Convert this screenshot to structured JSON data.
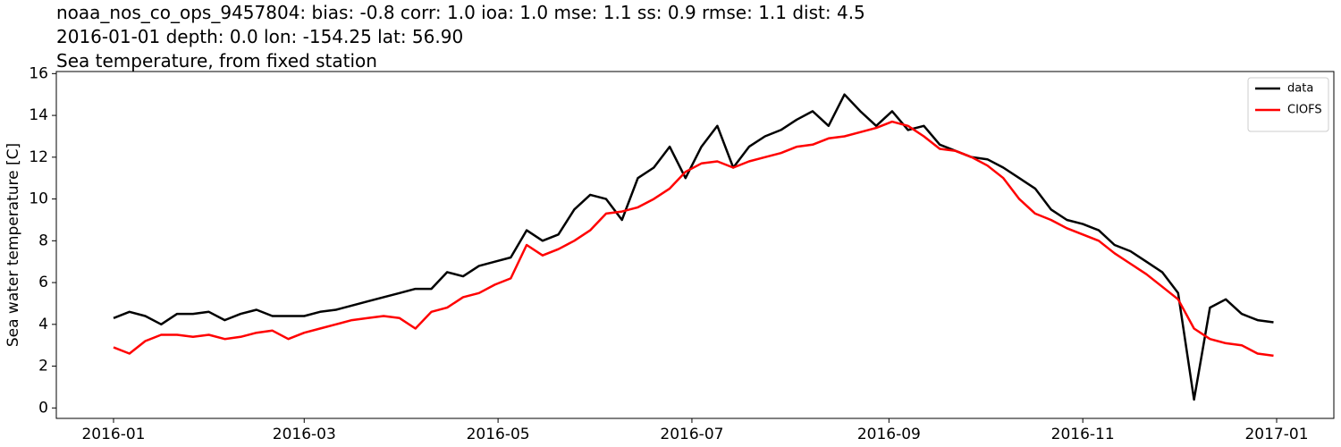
{
  "chart_data": {
    "type": "line",
    "title": "noaa_nos_co_ops_9457804: bias: -0.8  corr: 1.0  ioa: 1.0  mse: 1.1  ss: 0.9  rmse: 1.1  dist: 4.5",
    "subtitle": "2016-01-01 depth: 0.0 lon: -154.25 lat: 56.90",
    "subtitle2": "Sea temperature, from fixed station",
    "ylabel": "Sea water temperature [C]",
    "x": [
      0,
      5,
      10,
      15,
      20,
      25,
      30,
      35,
      40,
      45,
      50,
      55,
      60,
      65,
      70,
      75,
      80,
      85,
      90,
      95,
      100,
      105,
      110,
      115,
      120,
      125,
      130,
      135,
      140,
      145,
      150,
      155,
      160,
      165,
      170,
      175,
      180,
      185,
      190,
      195,
      200,
      205,
      210,
      215,
      220,
      225,
      230,
      235,
      240,
      245,
      250,
      255,
      260,
      265,
      270,
      275,
      280,
      285,
      290,
      295,
      300,
      305,
      310,
      315,
      320,
      325,
      330,
      335,
      340,
      345,
      350,
      355,
      360,
      365
    ],
    "series": [
      {
        "name": "data",
        "color": "#000000",
        "values": [
          4.3,
          4.6,
          4.4,
          4.0,
          4.5,
          4.5,
          4.6,
          4.2,
          4.5,
          4.7,
          4.4,
          4.4,
          4.4,
          4.6,
          4.7,
          4.9,
          5.1,
          5.3,
          5.5,
          5.7,
          5.7,
          6.5,
          6.3,
          6.8,
          7.0,
          7.2,
          8.5,
          8.0,
          8.3,
          9.5,
          10.2,
          10.0,
          9.0,
          11.0,
          11.5,
          12.5,
          11.0,
          12.5,
          13.5,
          11.5,
          12.5,
          13.0,
          13.3,
          13.8,
          14.2,
          13.5,
          15.0,
          14.2,
          13.5,
          14.2,
          13.3,
          13.5,
          12.6,
          12.3,
          12.0,
          11.9,
          11.5,
          11.0,
          10.5,
          9.5,
          9.0,
          8.8,
          8.5,
          7.8,
          7.5,
          7.0,
          6.5,
          5.5,
          0.4,
          4.8,
          5.2,
          4.5,
          4.2,
          4.1
        ]
      },
      {
        "name": "CIOFS",
        "color": "#ff0000",
        "values": [
          2.9,
          2.6,
          3.2,
          3.5,
          3.5,
          3.4,
          3.5,
          3.3,
          3.4,
          3.6,
          3.7,
          3.3,
          3.6,
          3.8,
          4.0,
          4.2,
          4.3,
          4.4,
          4.3,
          3.8,
          4.6,
          4.8,
          5.3,
          5.5,
          5.9,
          6.2,
          7.8,
          7.3,
          7.6,
          8.0,
          8.5,
          9.3,
          9.4,
          9.6,
          10.0,
          10.5,
          11.3,
          11.7,
          11.8,
          11.5,
          11.8,
          12.0,
          12.2,
          12.5,
          12.6,
          12.9,
          13.0,
          13.2,
          13.4,
          13.7,
          13.5,
          13.0,
          12.4,
          12.3,
          12.0,
          11.6,
          11.0,
          10.0,
          9.3,
          9.0,
          8.6,
          8.3,
          8.0,
          7.4,
          6.9,
          6.4,
          5.8,
          5.2,
          3.8,
          3.3,
          3.1,
          3.0,
          2.6,
          2.5
        ]
      }
    ],
    "xlim": [
      -18,
      384
    ],
    "xticks": [
      {
        "value": 0,
        "label": "2016-01"
      },
      {
        "value": 60,
        "label": "2016-03"
      },
      {
        "value": 121,
        "label": "2016-05"
      },
      {
        "value": 182,
        "label": "2016-07"
      },
      {
        "value": 244,
        "label": "2016-09"
      },
      {
        "value": 305,
        "label": "2016-11"
      },
      {
        "value": 366,
        "label": "2017-01"
      }
    ],
    "ylim": [
      -0.5,
      16.1
    ],
    "yticks": [
      0,
      2,
      4,
      6,
      8,
      10,
      12,
      14,
      16
    ],
    "grid": false,
    "legend": "upper right"
  }
}
